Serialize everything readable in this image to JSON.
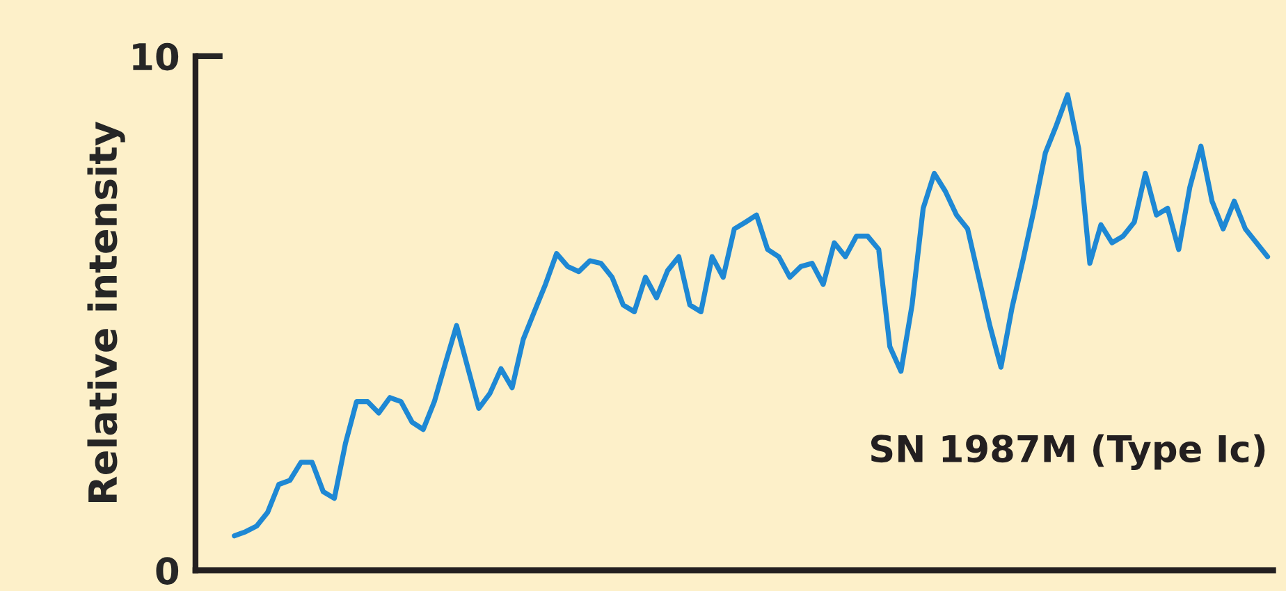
{
  "chart_data": {
    "type": "line",
    "ylabel": "Relative intensity",
    "annotations": [
      "SN 1987M (Type Ic)"
    ],
    "categories": [
      null,
      null,
      null,
      null,
      null,
      null,
      null,
      null,
      null,
      null,
      null,
      null,
      null,
      null,
      null,
      null,
      null,
      null,
      null,
      null,
      null,
      null,
      null,
      null,
      null,
      null,
      null,
      null,
      null,
      null,
      null,
      null,
      null,
      null,
      null,
      null,
      null,
      null,
      null,
      null,
      null,
      null,
      null,
      null,
      null,
      null,
      null,
      null,
      null,
      null,
      null,
      null,
      null,
      null,
      null,
      null,
      null,
      null,
      null,
      null,
      null,
      null,
      null,
      null,
      null,
      null,
      null,
      null,
      null,
      null,
      null,
      null,
      null,
      null,
      null,
      null,
      null,
      null,
      null,
      null,
      null,
      null,
      null,
      null,
      null,
      null,
      null,
      null,
      null,
      null,
      null,
      null,
      null,
      null
    ],
    "series": [
      {
        "color": "#1e88d4",
        "values": [
          0.67,
          0.75,
          0.86,
          1.13,
          1.67,
          1.75,
          2.1,
          2.1,
          1.53,
          1.4,
          2.47,
          3.28,
          3.28,
          3.06,
          3.36,
          3.28,
          2.88,
          2.74,
          3.28,
          4.03,
          4.76,
          3.95,
          3.15,
          3.44,
          3.92,
          3.55,
          4.49,
          5.03,
          5.56,
          6.16,
          5.91,
          5.81,
          6.02,
          5.97,
          5.7,
          5.16,
          5.03,
          5.7,
          5.3,
          5.83,
          6.1,
          5.16,
          5.03,
          6.1,
          5.7,
          6.64,
          6.77,
          6.91,
          6.24,
          6.1,
          5.7,
          5.91,
          5.97,
          5.56,
          6.37,
          6.1,
          6.5,
          6.5,
          6.24,
          4.35,
          3.87,
          5.16,
          7.04,
          7.72,
          7.37,
          6.91,
          6.64,
          5.7,
          4.76,
          3.95,
          5.11,
          6.05,
          7.04,
          8.12,
          8.66,
          9.25,
          8.2,
          5.97,
          6.72,
          6.37,
          6.5,
          6.77,
          7.72,
          6.91,
          7.04,
          6.24,
          7.45,
          8.25,
          7.18,
          6.64,
          7.18,
          6.64,
          6.37,
          6.1
        ]
      }
    ],
    "ylim": [
      0,
      10
    ],
    "yticks": [
      0,
      10
    ],
    "grid": false,
    "line_style": "solid",
    "marker": "none"
  }
}
